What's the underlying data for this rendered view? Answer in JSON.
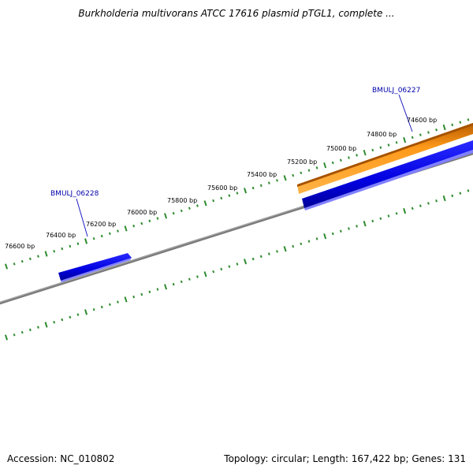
{
  "title": "Burkholderia multivorans ATCC 17616 plasmid pTGL1, complete ...",
  "accession": "Accession: NC_010802",
  "summary": "Topology: circular; Length: 167,422 bp; Genes: 131",
  "colors": {
    "backbone": "#808080",
    "forward_ticks": "#2e8b2e",
    "reverse_ticks": "#2e8b2e",
    "gene_blue": "#0000e0",
    "gene_orange": "#ff8c00",
    "label_blue": "#0000aa"
  },
  "bp_labels": [
    "76600 bp",
    "76400 bp",
    "76200 bp",
    "76000 bp",
    "75800 bp",
    "75600 bp",
    "75400 bp",
    "75200 bp",
    "75000 bp",
    "74800 bp",
    "74600 bp"
  ],
  "genes": [
    {
      "label": "BMULJ_06228",
      "color": "blue"
    },
    {
      "label": "BMULJ_06227",
      "color": "blue"
    },
    {
      "label": "",
      "color": "orange"
    }
  ]
}
